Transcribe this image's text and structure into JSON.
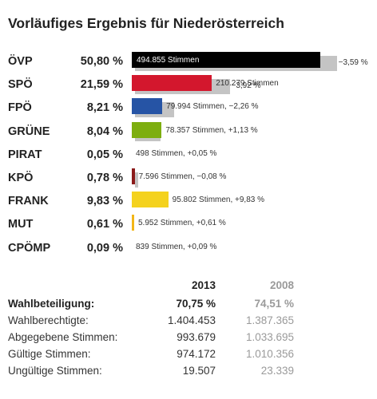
{
  "title": "Vorläufiges Ergebnis für Niederösterreich",
  "chart_data": {
    "type": "bar",
    "title": "Vorläufiges Ergebnis für Niederösterreich",
    "categories": [
      "ÖVP",
      "SPÖ",
      "FPÖ",
      "GRÜNE",
      "PIRAT",
      "KPÖ",
      "FRANK",
      "MUT",
      "CPÖMP"
    ],
    "values": [
      50.8,
      21.59,
      8.21,
      8.04,
      0.05,
      0.78,
      9.83,
      0.61,
      0.09
    ],
    "previous_values": [
      54.39,
      25.51,
      10.47,
      6.91,
      0.0,
      0.86,
      0.0,
      0.0,
      0.0
    ],
    "percent_labels": [
      "50,80 %",
      "21,59 %",
      "8,21 %",
      "8,04 %",
      "0,05 %",
      "0,78 %",
      "9,83 %",
      "0,61 %",
      "0,09 %"
    ],
    "bar_labels": [
      "494.855 Stimmen",
      "210.279 Stimmen",
      "79.994 Stimmen, −2,26 %",
      "78.357 Stimmen, +1,13 %",
      "498 Stimmen, +0,05 %",
      "7.596 Stimmen, −0,08 %",
      "95.802 Stimmen, +9,83 %",
      "5.952 Stimmen, +0,61 %",
      "839 Stimmen, +0,09 %"
    ],
    "change_labels": [
      "−3,59 %",
      "−3,92 %",
      "",
      "",
      "",
      "",
      "",
      "",
      ""
    ],
    "colors": [
      "#000000",
      "#d3172d",
      "#2654a5",
      "#7dae0f",
      "#6a2a8c",
      "#8b1a1a",
      "#f4d21e",
      "#f2b618",
      "#f08c1e"
    ],
    "shadow_color": "#c4c4c4",
    "orientation": "horizontal"
  },
  "stats": {
    "col_2013": "2013",
    "col_2008": "2008",
    "rows": [
      {
        "label": "Wahlbeteiligung:",
        "v2013": "70,75 %",
        "v2008": "74,51 %",
        "bold": true
      },
      {
        "label": "Wahlberechtigte:",
        "v2013": "1.404.453",
        "v2008": "1.387.365",
        "bold": false
      },
      {
        "label": "Abgegebene Stimmen:",
        "v2013": "993.679",
        "v2008": "1.033.695",
        "bold": false
      },
      {
        "label": "Gültige Stimmen:",
        "v2013": "974.172",
        "v2008": "1.010.356",
        "bold": false
      },
      {
        "label": "Ungültige Stimmen:",
        "v2013": "19.507",
        "v2008": "23.339",
        "bold": false
      }
    ]
  }
}
